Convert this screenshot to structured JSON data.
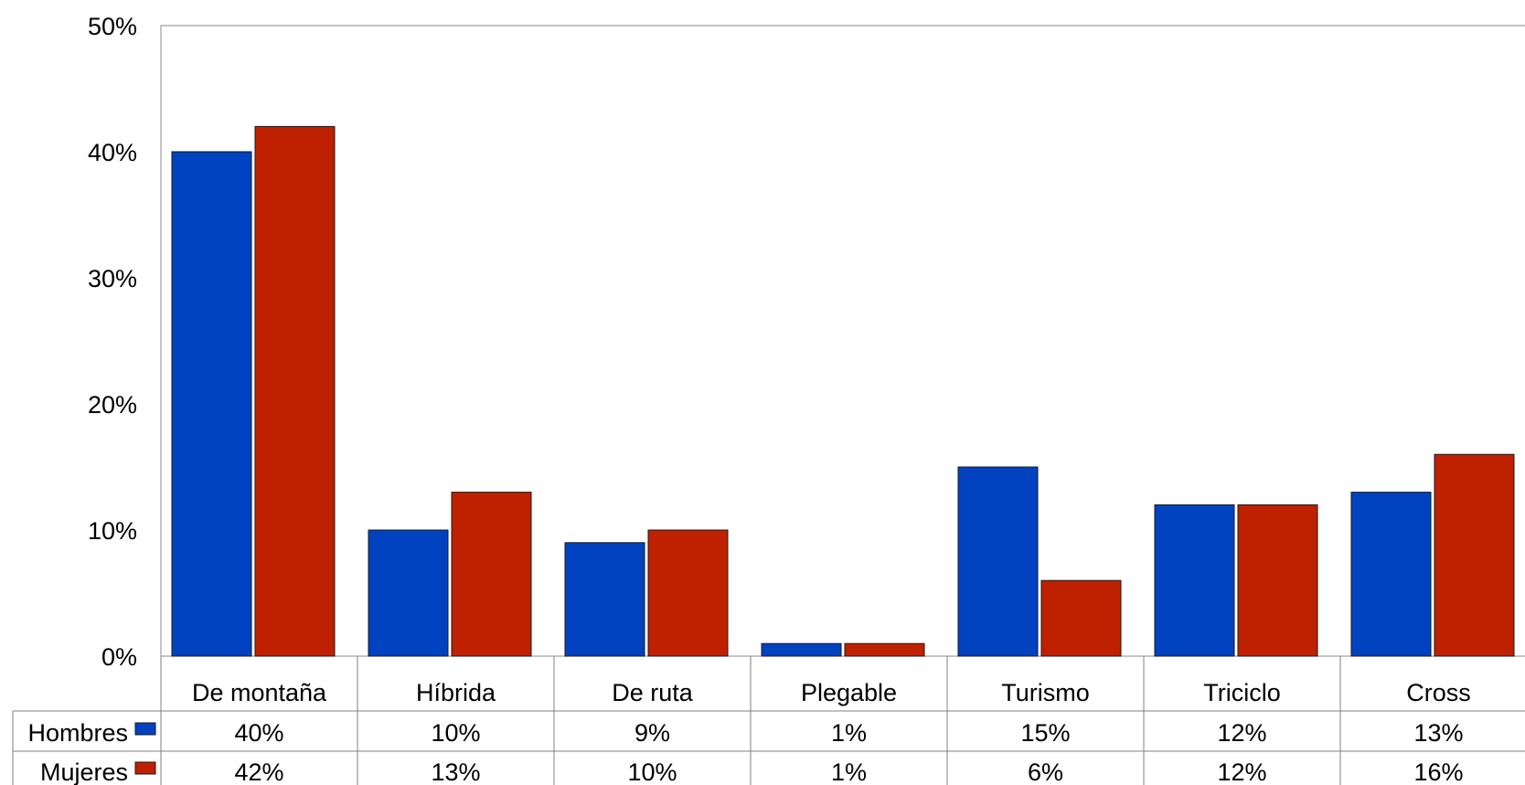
{
  "colors": {
    "hombres": "#0042C0",
    "mujeres": "#BF2000",
    "axis": "#888888",
    "grid_border": "#808080"
  },
  "chart_data": {
    "type": "bar",
    "categories": [
      "De montaña",
      "Híbrida",
      "De ruta",
      "Plegable",
      "Turismo",
      "Triciclo",
      "Cross"
    ],
    "series": [
      {
        "name": "Hombres",
        "color": "#0042C0",
        "values": [
          40,
          10,
          9,
          1,
          15,
          12,
          13
        ],
        "labels": [
          "40%",
          "10%",
          "9%",
          "1%",
          "15%",
          "12%",
          "13%"
        ]
      },
      {
        "name": "Mujeres",
        "color": "#BF2000",
        "values": [
          42,
          13,
          10,
          1,
          6,
          12,
          16
        ],
        "labels": [
          "42%",
          "13%",
          "10%",
          "1%",
          "6%",
          "12%",
          "16%"
        ]
      }
    ],
    "ylim": [
      0,
      50
    ],
    "yticks": [
      0,
      10,
      20,
      30,
      40,
      50
    ],
    "ytick_labels": [
      "0%",
      "10%",
      "20%",
      "30%",
      "40%",
      "50%"
    ],
    "grid": false,
    "legend": "data-table-left",
    "data_table": true
  }
}
